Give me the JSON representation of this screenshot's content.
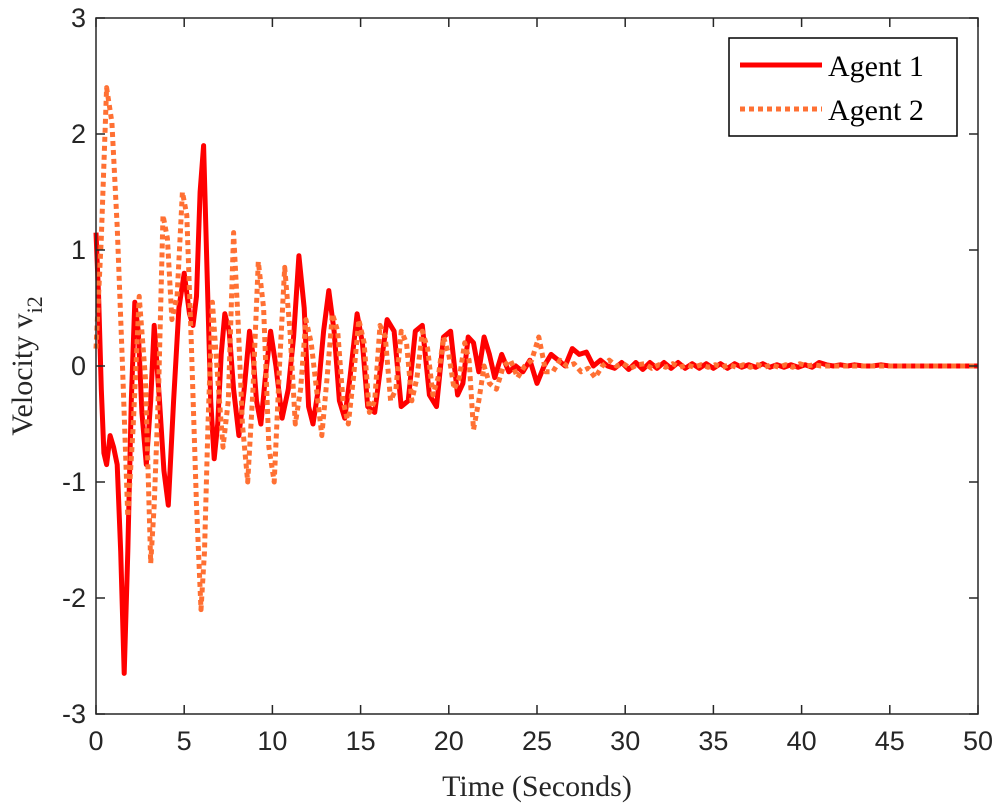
{
  "chart_data": {
    "type": "line",
    "title": "",
    "xlabel": "Time (Seconds)",
    "ylabel_main": "Velocity v",
    "ylabel_sub": "i2",
    "xlim": [
      0,
      50
    ],
    "ylim": [
      -3,
      3
    ],
    "xticks": [
      0,
      5,
      10,
      15,
      20,
      25,
      30,
      35,
      40,
      45,
      50
    ],
    "yticks": [
      -3,
      -2,
      -1,
      0,
      1,
      2,
      3
    ],
    "grid": false,
    "box": true,
    "legend_position": "top-right",
    "colors": {
      "agent1": "#ff0000",
      "agent2": "#ff7033",
      "axis": "#262626"
    },
    "series": [
      {
        "name": "Agent 1",
        "style": "solid",
        "x": [
          0,
          0.15,
          0.3,
          0.45,
          0.6,
          0.8,
          1.0,
          1.2,
          1.4,
          1.6,
          1.8,
          2.0,
          2.2,
          2.4,
          2.6,
          2.85,
          3.1,
          3.3,
          3.6,
          3.85,
          4.1,
          4.4,
          4.7,
          5.0,
          5.3,
          5.5,
          5.7,
          5.9,
          6.1,
          6.3,
          6.5,
          6.7,
          6.9,
          7.1,
          7.3,
          7.55,
          7.8,
          8.1,
          8.4,
          8.7,
          8.9,
          9.1,
          9.35,
          9.6,
          9.9,
          10.2,
          10.55,
          10.9,
          11.2,
          11.5,
          11.8,
          12.05,
          12.3,
          12.6,
          12.9,
          13.2,
          13.5,
          13.8,
          14.1,
          14.4,
          14.8,
          15.1,
          15.4,
          15.8,
          16.1,
          16.5,
          16.9,
          17.3,
          17.7,
          18.1,
          18.5,
          18.9,
          19.3,
          19.7,
          20.1,
          20.5,
          20.8,
          21.1,
          21.4,
          21.7,
          22.0,
          22.3,
          22.6,
          23.0,
          23.4,
          23.8,
          24.2,
          24.6,
          25.0,
          25.4,
          25.8,
          26.2,
          26.6,
          27.0,
          27.4,
          27.8,
          28.2,
          28.6,
          29.0,
          29.4,
          29.8,
          30.2,
          30.6,
          31.0,
          31.4,
          31.8,
          32.2,
          32.6,
          33.0,
          33.4,
          33.8,
          34.2,
          34.6,
          35.0,
          35.4,
          35.8,
          36.2,
          36.6,
          37.0,
          37.4,
          37.8,
          38.2,
          38.6,
          39.0,
          39.4,
          39.8,
          40.2,
          40.6,
          41.0,
          41.4,
          41.8,
          42.2,
          42.6,
          43.0,
          43.5,
          44.0,
          44.5,
          45.0,
          45.5,
          46.0,
          46.5,
          47.0,
          47.5,
          48.0,
          48.5,
          49.0,
          49.5,
          50.0
        ],
        "y": [
          1.15,
          0.6,
          -0.2,
          -0.75,
          -0.85,
          -0.6,
          -0.7,
          -0.85,
          -1.6,
          -2.65,
          -1.6,
          -0.3,
          0.55,
          0.3,
          -0.4,
          -0.85,
          -0.3,
          0.35,
          -0.3,
          -0.9,
          -1.2,
          -0.3,
          0.5,
          0.8,
          0.45,
          0.35,
          0.6,
          1.5,
          1.9,
          0.8,
          -0.3,
          -0.8,
          -0.5,
          0.1,
          0.45,
          0.3,
          -0.2,
          -0.6,
          -0.2,
          0.3,
          0.1,
          -0.3,
          -0.5,
          -0.1,
          0.3,
          0.0,
          -0.45,
          -0.2,
          0.25,
          0.95,
          0.5,
          -0.35,
          -0.5,
          -0.2,
          0.3,
          0.65,
          0.3,
          -0.3,
          -0.45,
          -0.1,
          0.45,
          0.2,
          -0.35,
          -0.4,
          -0.05,
          0.4,
          0.3,
          -0.35,
          -0.3,
          0.3,
          0.35,
          -0.25,
          -0.35,
          0.25,
          0.3,
          -0.25,
          -0.15,
          0.25,
          0.2,
          -0.05,
          0.25,
          0.1,
          -0.1,
          0.1,
          -0.05,
          0.0,
          -0.05,
          0.05,
          -0.15,
          0.0,
          0.1,
          0.05,
          0.0,
          0.15,
          0.1,
          0.12,
          0.0,
          0.05,
          0.0,
          -0.02,
          0.03,
          -0.03,
          0.03,
          -0.03,
          0.03,
          -0.02,
          0.03,
          -0.02,
          0.03,
          -0.02,
          0.02,
          -0.02,
          0.02,
          -0.02,
          0.02,
          -0.02,
          0.02,
          -0.01,
          0.01,
          -0.01,
          0.02,
          -0.01,
          0.01,
          -0.01,
          0.01,
          -0.01,
          0.01,
          -0.01,
          0.03,
          0.01,
          0.0,
          0.01,
          0.0,
          0.01,
          0.0,
          0.0,
          0.01,
          0.0,
          0.0,
          0.0,
          0.0,
          0.0,
          0.0,
          0.0,
          0.0,
          0.0,
          0.0,
          0.0
        ]
      },
      {
        "name": "Agent 2",
        "style": "dotted",
        "x": [
          0,
          0.3,
          0.6,
          0.9,
          1.2,
          1.5,
          1.8,
          2.1,
          2.45,
          2.8,
          3.1,
          3.3,
          3.55,
          3.8,
          4.05,
          4.3,
          4.6,
          4.9,
          5.15,
          5.4,
          5.7,
          5.95,
          6.15,
          6.35,
          6.6,
          6.9,
          7.2,
          7.5,
          7.8,
          8.05,
          8.3,
          8.6,
          8.9,
          9.2,
          9.5,
          9.8,
          10.1,
          10.4,
          10.7,
          11.0,
          11.3,
          11.6,
          11.9,
          12.2,
          12.5,
          12.8,
          13.1,
          13.4,
          13.7,
          14.0,
          14.3,
          14.6,
          14.9,
          15.2,
          15.5,
          15.8,
          16.1,
          16.4,
          16.7,
          17.0,
          17.3,
          17.6,
          17.9,
          18.2,
          18.5,
          18.8,
          19.1,
          19.4,
          19.7,
          20.0,
          20.3,
          20.6,
          20.9,
          21.15,
          21.4,
          21.7,
          22.0,
          22.3,
          22.7,
          23.1,
          23.5,
          23.9,
          24.3,
          24.7,
          25.1,
          25.5,
          25.9,
          26.3,
          26.7,
          27.1,
          27.5,
          27.9,
          28.3,
          28.7,
          29.1,
          29.5,
          29.9,
          30.3,
          30.7,
          31.1,
          31.5,
          31.9,
          32.3,
          32.7,
          33.1,
          33.5,
          33.9,
          34.3,
          34.7,
          35.1,
          35.5,
          35.9,
          36.3,
          36.7,
          37.1,
          37.5,
          37.9,
          38.3,
          38.7,
          39.1,
          39.5,
          39.9,
          40.3,
          40.7,
          41.1,
          41.5,
          42.0,
          42.5,
          43.0,
          43.5,
          44.0,
          44.5,
          45.0,
          45.5,
          46.0,
          46.5,
          47.0,
          47.5,
          48.0,
          48.5,
          49.0,
          49.5,
          50.0
        ],
        "y": [
          0.15,
          1.1,
          2.4,
          2.1,
          1.2,
          0.0,
          -1.3,
          -0.55,
          0.6,
          -0.1,
          -1.7,
          -1.2,
          -0.2,
          1.3,
          1.1,
          0.4,
          0.6,
          1.5,
          1.3,
          0.2,
          -1.2,
          -2.1,
          -1.6,
          -0.5,
          0.55,
          -0.1,
          -0.7,
          -0.3,
          1.15,
          0.4,
          -0.5,
          -1.0,
          -0.2,
          0.9,
          0.5,
          -0.7,
          -1.0,
          0.0,
          0.85,
          0.3,
          -0.5,
          -0.2,
          0.4,
          0.2,
          -0.2,
          -0.6,
          -0.1,
          0.45,
          0.3,
          -0.3,
          -0.5,
          -0.1,
          0.4,
          0.2,
          -0.4,
          -0.3,
          0.35,
          0.25,
          -0.3,
          -0.2,
          0.3,
          0.2,
          -0.3,
          -0.1,
          0.3,
          0.15,
          -0.25,
          -0.1,
          0.25,
          0.1,
          -0.2,
          -0.1,
          0.2,
          0.05,
          -0.55,
          -0.3,
          0.0,
          -0.15,
          -0.2,
          0.0,
          0.05,
          -0.1,
          0.0,
          0.05,
          0.25,
          -0.05,
          -0.05,
          0.05,
          0.0,
          0.02,
          -0.05,
          -0.02,
          -0.1,
          0.0,
          0.05,
          0.0,
          0.02,
          -0.02,
          0.01,
          0.02,
          -0.02,
          0.01,
          -0.01,
          0.02,
          -0.01,
          0.01,
          -0.01,
          0.01,
          -0.01,
          0.01,
          -0.01,
          0.01,
          -0.01,
          0.01,
          -0.01,
          0.01,
          -0.01,
          0.01,
          -0.01,
          0.01,
          -0.01,
          0.02,
          0.0,
          0.01,
          0.0,
          0.0,
          0.0,
          0.0,
          0.0,
          0.0,
          0.0,
          0.0,
          0.0,
          0.0,
          0.0,
          0.0,
          0.0,
          0.0,
          0.0,
          0.0,
          0.0,
          0.0,
          0.0
        ]
      }
    ]
  }
}
